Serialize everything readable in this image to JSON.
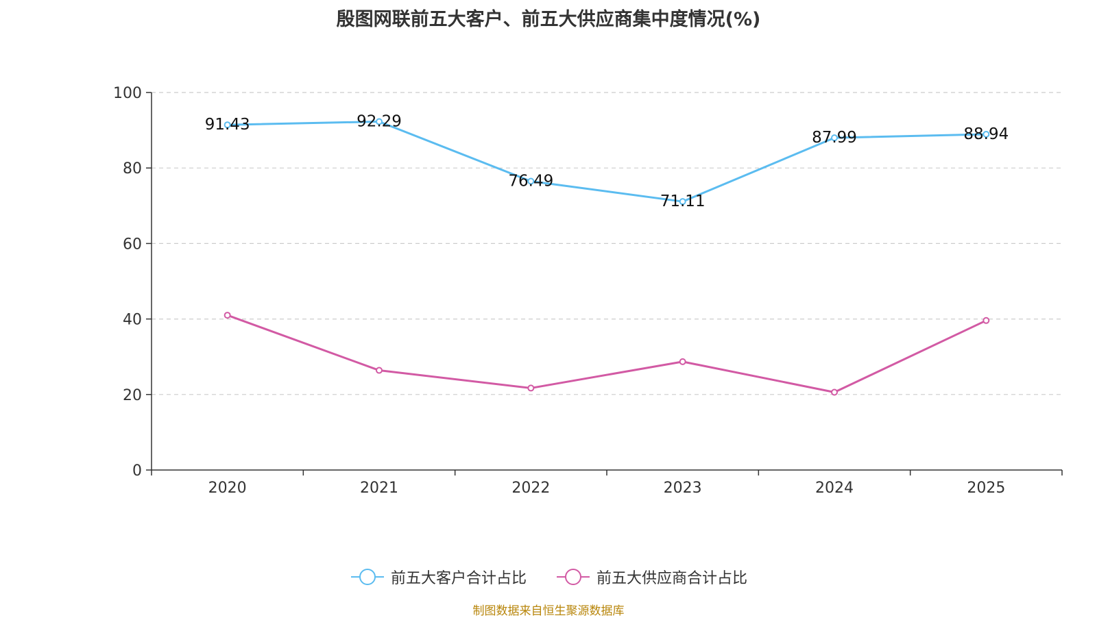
{
  "title": "殷图网联前五大客户、前五大供应商集中度情况(%)",
  "source": "制图数据来自恒生聚源数据库",
  "chart_data": {
    "type": "line",
    "categories": [
      "2020",
      "2021",
      "2022",
      "2023",
      "2024",
      "2025"
    ],
    "ylim": [
      0,
      100
    ],
    "yticks": [
      0,
      20,
      40,
      60,
      80,
      100
    ],
    "grid": true,
    "legend_position": "bottom-center",
    "series": [
      {
        "name": "前五大客户合计占比",
        "color": "#5bbcf0",
        "values": [
          91.43,
          92.29,
          76.49,
          71.11,
          87.99,
          88.94
        ],
        "labels": [
          "91.43",
          "92.29",
          "76.49",
          "71.11",
          "87.99",
          "88.94"
        ],
        "show_labels": true
      },
      {
        "name": "前五大供应商合计占比",
        "color": "#d25aa4",
        "values": [
          41.0,
          26.4,
          21.7,
          28.7,
          20.6,
          39.6
        ],
        "show_labels": false
      }
    ]
  }
}
